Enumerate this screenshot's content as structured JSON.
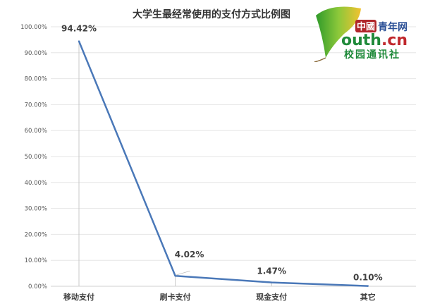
{
  "chart_data": {
    "type": "line",
    "title": "大学生最经常使用的支付方式比例图",
    "categories": [
      "移动支付",
      "刷卡支付",
      "现金支付",
      "其它"
    ],
    "values": [
      94.42,
      4.02,
      1.47,
      0.1
    ],
    "data_labels": [
      "94.42%",
      "4.02%",
      "1.47%",
      "0.10%"
    ],
    "ylim": [
      0,
      100
    ],
    "yticks": [
      "0.00%",
      "10.00%",
      "20.00%",
      "30.00%",
      "40.00%",
      "50.00%",
      "60.00%",
      "70.00%",
      "80.00%",
      "90.00%",
      "100.00%"
    ],
    "grid": true,
    "drop_lines": true,
    "line_color": "#4a78b8",
    "xlabel": "",
    "ylabel": ""
  },
  "logo": {
    "text_top": "中國青年网",
    "text_mid": "outh.cn",
    "text_bottom": "校园通讯社"
  }
}
